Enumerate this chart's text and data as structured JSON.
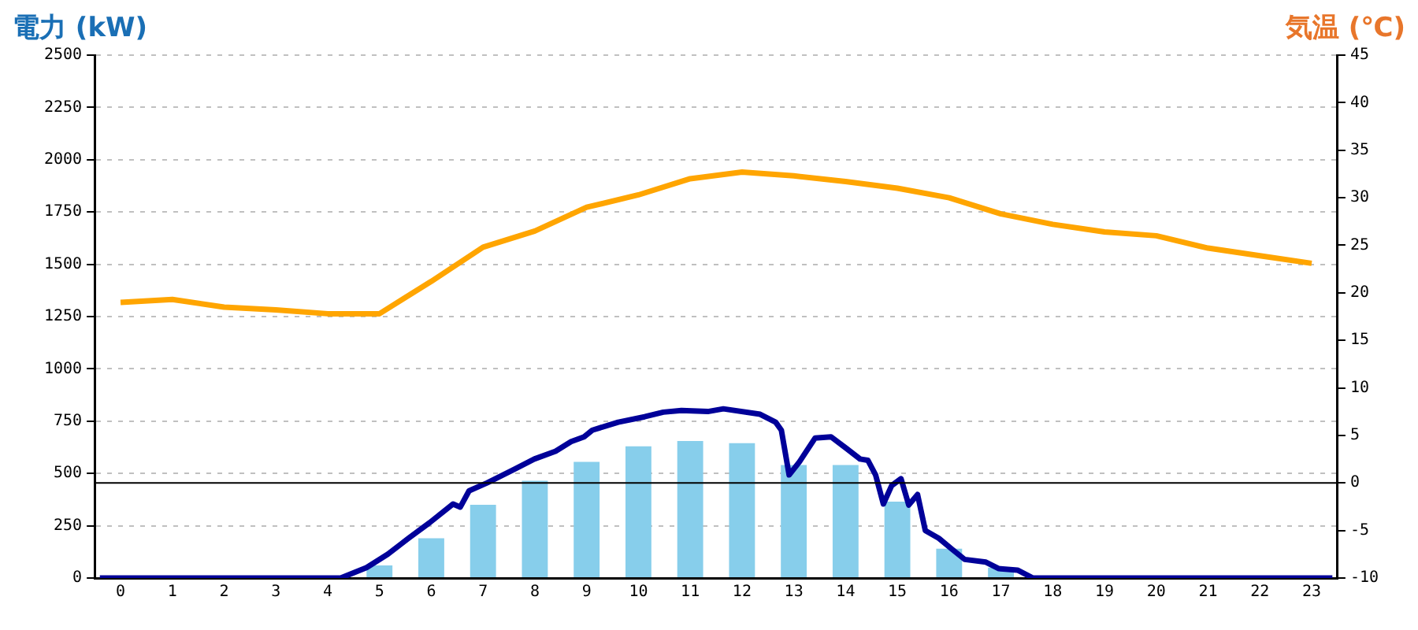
{
  "chart_data": {
    "type": "bar",
    "ylabel": "電力 (kW)",
    "y2label": "気温 (℃)",
    "x": [
      0,
      1,
      2,
      3,
      4,
      5,
      6,
      7,
      8,
      9,
      10,
      11,
      12,
      13,
      14,
      15,
      16,
      17,
      18,
      19,
      20,
      21,
      22,
      23
    ],
    "xlim": [
      -0.5,
      23.5
    ],
    "xticks": [
      0,
      1,
      2,
      3,
      4,
      5,
      6,
      7,
      8,
      9,
      10,
      11,
      12,
      13,
      14,
      15,
      16,
      17,
      18,
      19,
      20,
      21,
      22,
      23
    ],
    "ylim": [
      0,
      2500
    ],
    "yticks": [
      0,
      250,
      500,
      750,
      1000,
      1250,
      1500,
      1750,
      2000,
      2250,
      2500
    ],
    "y2lim": [
      -10,
      45
    ],
    "y2ticks": [
      -10,
      -5,
      0,
      5,
      10,
      15,
      20,
      25,
      30,
      35,
      40,
      45
    ],
    "series": [
      {
        "color": "#87ceeb",
        "values": [
          0,
          0,
          0,
          0,
          0,
          60,
          190,
          350,
          465,
          555,
          630,
          655,
          645,
          540,
          540,
          365,
          140,
          50,
          0,
          0,
          0,
          0,
          0,
          0
        ]
      },
      {
        "type": "line",
        "color": "#000099",
        "x": [
          -0.4,
          4.25,
          4.75,
          5.16,
          5.56,
          5.97,
          6.42,
          6.56,
          6.73,
          7.08,
          7.59,
          7.99,
          8.4,
          8.7,
          8.95,
          9.11,
          9.61,
          10.12,
          10.48,
          10.83,
          11.34,
          11.64,
          12.35,
          12.65,
          12.76,
          12.91,
          13.11,
          13.41,
          13.72,
          14.02,
          14.28,
          14.43,
          14.58,
          14.73,
          14.89,
          15.07,
          15.22,
          15.39,
          15.54,
          15.8,
          16.05,
          16.3,
          16.71,
          16.96,
          17.32,
          17.62,
          23.4
        ],
        "values": [
          0,
          0,
          50,
          114,
          190,
          265,
          354,
          339,
          417,
          455,
          518,
          569,
          606,
          652,
          675,
          707,
          745,
          771,
          793,
          801,
          796,
          809,
          783,
          745,
          707,
          493,
          556,
          669,
          675,
          619,
          569,
          563,
          493,
          354,
          442,
          475,
          349,
          399,
          227,
          190,
          139,
          89,
          76,
          45,
          38,
          0,
          0
        ]
      },
      {
        "type": "line",
        "color": "#ffa500",
        "axis": "y2",
        "values": [
          19.0,
          19.3,
          18.5,
          18.2,
          17.8,
          17.8,
          21.2,
          24.8,
          26.5,
          29.0,
          30.3,
          32.0,
          32.7,
          32.3,
          31.7,
          31.0,
          30.0,
          28.3,
          27.2,
          26.4,
          26.0,
          24.7,
          23.9,
          23.1
        ]
      }
    ],
    "ref_lines": [
      {
        "axis": "y2",
        "value": 0,
        "color": "#000000"
      }
    ],
    "grid": "y",
    "legend": false,
    "marker": "none"
  }
}
